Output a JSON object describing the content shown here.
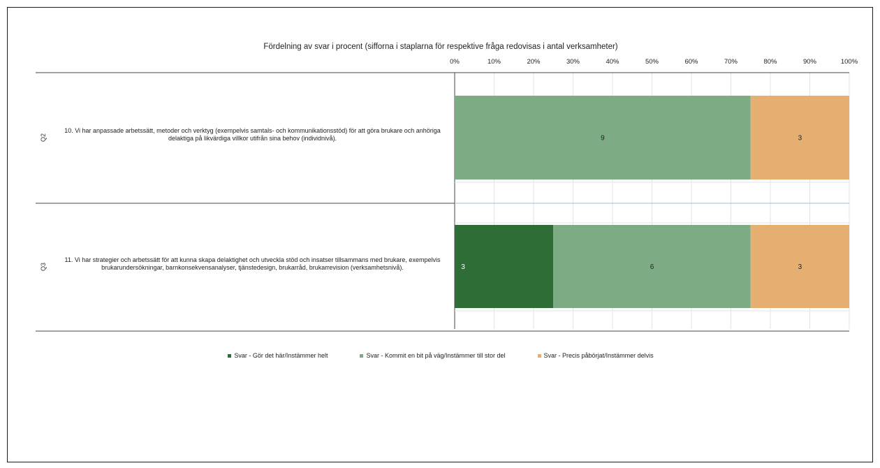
{
  "chart_data": {
    "type": "bar",
    "orientation": "horizontal-stacked-100",
    "title": "Fördelning av svar i procent (sifforna i staplarna för respektive fråga redovisas i antal verksamheter)",
    "xaxis_ticks": [
      "0%",
      "10%",
      "20%",
      "30%",
      "40%",
      "50%",
      "60%",
      "70%",
      "80%",
      "90%",
      "100%"
    ],
    "xlim": [
      0,
      100
    ],
    "grid": true,
    "legend_position": "bottom",
    "categories": [
      {
        "id": "Q2",
        "label": "10. Vi har anpassade arbetssätt, metoder och verktyg (exempelvis samtals- och kommunikationsstöd) för att göra brukare och anhöriga delaktiga på likvärdiga villkor utifrån sina behov (individnivå)."
      },
      {
        "id": "Q3",
        "label": "11. Vi har strategier och arbetssätt för att kunna skapa delaktighet och utveckla stöd och insatser tillsammans med brukare, exempelvis brukarundersökningar, barnkonsekvensanalyser, tjänstedesign, brukarråd, brukarrevision (verksamhetsnivå)."
      }
    ],
    "series": [
      {
        "name": "Svar - Gör det här/Instämmer helt",
        "color": "#2e6e36",
        "counts": [
          null,
          3
        ],
        "percent": [
          0,
          25
        ]
      },
      {
        "name": "Svar - Kommit en bit på väg/Instämmer till stor del",
        "color": "#7dab83",
        "counts": [
          9,
          6
        ],
        "percent": [
          75,
          50
        ]
      },
      {
        "name": "Svar - Precis påbörjat/Instämmer delvis",
        "color": "#e5af72",
        "counts": [
          3,
          3
        ],
        "percent": [
          25,
          25
        ]
      }
    ]
  }
}
